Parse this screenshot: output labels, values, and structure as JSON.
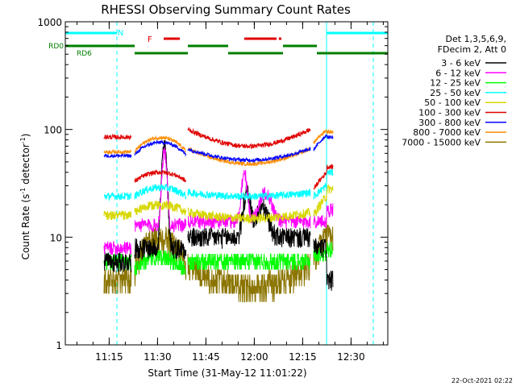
{
  "chart_data": {
    "type": "line",
    "title": "RHESSI Observing Summary Count Rates",
    "xlabel": "Start Time (31-May-12 11:01:22)",
    "ylabel": "Count Rate (s",
    "ylabel_sup": "-1",
    "ylabel_tail": " detector",
    "ylabel_tail_sup": "-1",
    "ylabel_close": ")",
    "y_scale": "log",
    "ylim": [
      1,
      1000
    ],
    "y_ticks": [
      {
        "value": 1,
        "label": "1"
      },
      {
        "value": 10,
        "label": "10"
      },
      {
        "value": 100,
        "label": "100"
      },
      {
        "value": 1000,
        "label": "1000"
      }
    ],
    "x_range_minutes": [
      0,
      100
    ],
    "x_ticks": [
      {
        "minute": 13.6,
        "label": "11:15"
      },
      {
        "minute": 28.6,
        "label": "11:30"
      },
      {
        "minute": 43.6,
        "label": "11:45"
      },
      {
        "minute": 58.6,
        "label": "12:00"
      },
      {
        "minute": 73.6,
        "label": "12:15"
      },
      {
        "minute": 88.6,
        "label": "12:30"
      }
    ],
    "legend_header": [
      "Det 1,3,5,6,9,",
      "FDecim 2, Att 0"
    ],
    "legend_position": "right",
    "series": [
      {
        "name": "3 - 6 keV",
        "color": "#000000"
      },
      {
        "name": "6 - 12 keV",
        "color": "#ff00ff"
      },
      {
        "name": "12 - 25 keV",
        "color": "#00ff00"
      },
      {
        "name": "25 - 50 keV",
        "color": "#00ffff"
      },
      {
        "name": "50 - 100 keV",
        "color": "#d7d700"
      },
      {
        "name": "100 - 300 keV",
        "color": "#e00000"
      },
      {
        "name": "300 - 800 keV",
        "color": "#0000ff"
      },
      {
        "name": "800 - 7000 keV",
        "color": "#ff8c00"
      },
      {
        "name": "7000 - 15000 keV",
        "color": "#8b7500"
      }
    ],
    "status_bars": [
      {
        "label": "N",
        "color": "#00ffff",
        "segments": [
          [
            0,
            16
          ],
          [
            81,
            100
          ]
        ]
      },
      {
        "label": "F",
        "color": "#e00000",
        "segments": [
          [
            30.5,
            35.5
          ],
          [
            55.5,
            65.5
          ],
          [
            66.2,
            67
          ]
        ]
      },
      {
        "label": "RD0",
        "color": "#007f00",
        "segments": [
          [
            0,
            21.5
          ],
          [
            38,
            50.5
          ],
          [
            67.5,
            78
          ]
        ]
      },
      {
        "label": "RD6",
        "color": "#007f00",
        "segments": [
          [
            21.5,
            38
          ],
          [
            50.5,
            67.5
          ],
          [
            78,
            100
          ]
        ]
      }
    ],
    "night_boundaries_minutes": [
      {
        "minute": 16,
        "style": "dashed"
      },
      {
        "minute": 81,
        "style": "solid"
      },
      {
        "minute": 95.5,
        "style": "dashed"
      }
    ],
    "day_intervals": [
      [
        16,
        81
      ]
    ],
    "data_gap_segments": [
      [
        12,
        20.5
      ],
      [
        21.5,
        37.5
      ],
      [
        38,
        76
      ],
      [
        77,
        81
      ],
      [
        81,
        83
      ]
    ]
  },
  "footer_date": "22-Oct-2021 02:22"
}
